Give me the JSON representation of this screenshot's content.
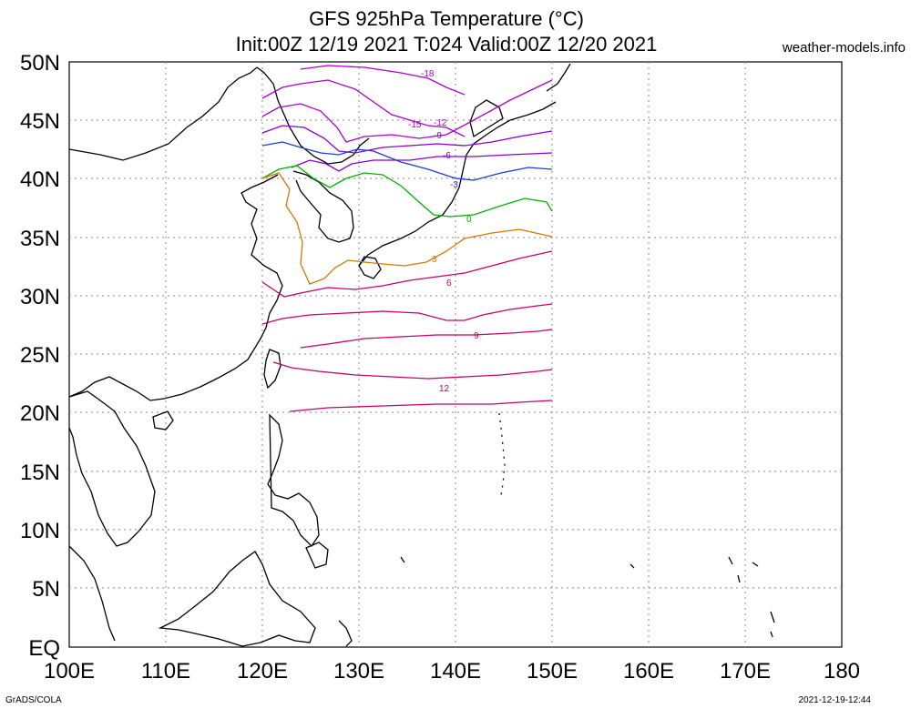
{
  "header": {
    "title_line1": "GFS 925hPa Temperature (°C)",
    "title_line2": "Init:00Z 12/19 2021 T:024 Valid:00Z 12/20 2021",
    "brand": "weather-models.info"
  },
  "footer": {
    "left": "GrADS/COLA",
    "right": "2021-12-19-12:44"
  },
  "axes": {
    "y_labels": [
      "50N",
      "45N",
      "40N",
      "35N",
      "30N",
      "25N",
      "20N",
      "15N",
      "10N",
      "5N",
      "EQ"
    ],
    "x_labels": [
      "100E",
      "110E",
      "120E",
      "130E",
      "140E",
      "150E",
      "160E",
      "170E",
      "180"
    ]
  },
  "contour_labels": [
    {
      "text": "-18",
      "color": "#b000d0"
    },
    {
      "text": "-15",
      "color": "#b000d0"
    },
    {
      "text": "-12",
      "color": "#b000d0"
    },
    {
      "text": "-9",
      "color": "#8a00d0"
    },
    {
      "text": "-6",
      "color": "#8a00d0"
    },
    {
      "text": "-3",
      "color": "#1a3cd8"
    },
    {
      "text": "0",
      "color": "#00b400"
    },
    {
      "text": "3",
      "color": "#d87800"
    },
    {
      "text": "6",
      "color": "#c8006e"
    },
    {
      "text": "9",
      "color": "#c8006e"
    },
    {
      "text": "12",
      "color": "#c8006e"
    }
  ],
  "colors": {
    "minus_cold": "#b000d0",
    "minus_mid": "#8a00d0",
    "minus3": "#1a3cd8",
    "zero": "#00b400",
    "plus3": "#d87800",
    "plus_warm": "#c8006e",
    "grid": "#888888"
  }
}
